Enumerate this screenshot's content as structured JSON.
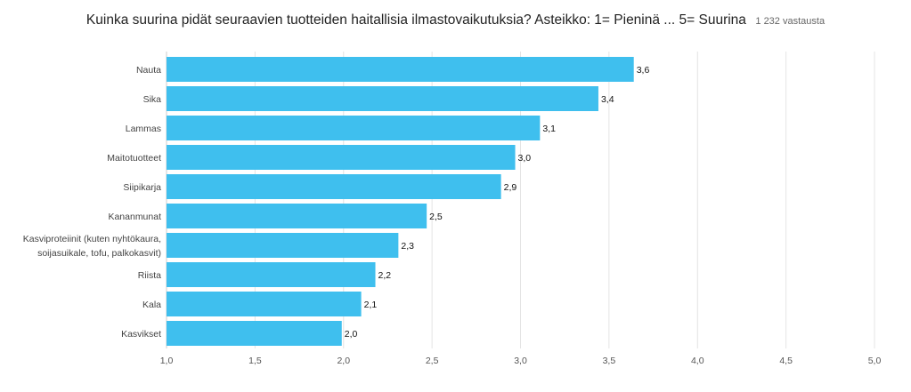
{
  "question_title": "Kuinka suurina pidät seuraavien tuotteiden haitallisia ilmastovaikutuksia? Asteikko: 1= Pieninä ... 5= Suurina",
  "response_count": "1 232 vastausta",
  "colors": {
    "bar": "#3fbfee",
    "grid": "#e4e4e4",
    "axis": "#cccccc"
  },
  "chart_data": {
    "type": "bar",
    "orientation": "horizontal",
    "title": "Kuinka suurina pidät seuraavien tuotteiden haitallisia ilmastovaikutuksia? Asteikko: 1= Pieninä ... 5= Suurina",
    "categories": [
      [
        "Nauta"
      ],
      [
        "Sika"
      ],
      [
        "Lammas"
      ],
      [
        "Maitotuotteet"
      ],
      [
        "Siipikarja"
      ],
      [
        "Kananmunat"
      ],
      [
        "Kasviproteiinit (kuten nyhtökaura,",
        "soijasuikale, tofu, palkokasvit)"
      ],
      [
        "Riista"
      ],
      [
        "Kala"
      ],
      [
        "Kasvikset"
      ]
    ],
    "values": [
      3.64,
      3.44,
      3.11,
      2.97,
      2.89,
      2.47,
      2.31,
      2.18,
      2.1,
      1.99
    ],
    "value_labels": [
      "3,6",
      "3,4",
      "3,1",
      "3,0",
      "2,9",
      "2,5",
      "2,3",
      "2,2",
      "2,1",
      "2,0"
    ],
    "xlim": [
      1.0,
      5.0
    ],
    "x_ticks": [
      1.0,
      1.5,
      2.0,
      2.5,
      3.0,
      3.5,
      4.0,
      4.5,
      5.0
    ],
    "x_tick_labels": [
      "1,0",
      "1,5",
      "2,0",
      "2,5",
      "3,0",
      "3,5",
      "4,0",
      "4,5",
      "5,0"
    ],
    "grid": true
  }
}
